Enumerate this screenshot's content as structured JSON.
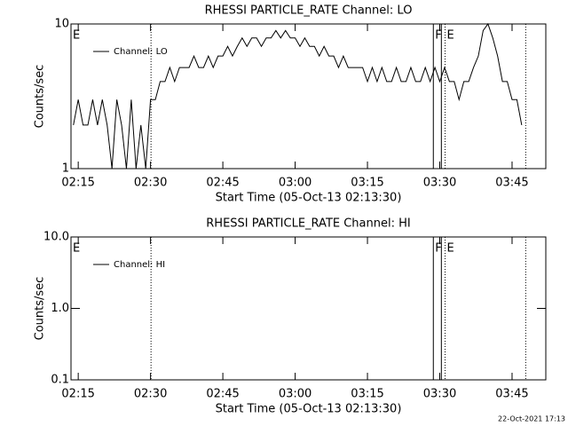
{
  "timestamp": "22-Oct-2021 17:13",
  "chart_data": [
    {
      "type": "line",
      "title": "RHESSI PARTICLE_RATE Channel: LO",
      "xlabel": "Start Time (05-Oct-13 02:13:30)",
      "ylabel": "Counts/sec",
      "log_y": true,
      "legend": "upper left",
      "step": false,
      "xlim": [
        "02:13:30",
        "03:52:00"
      ],
      "xticks": [
        "02:15",
        "02:30",
        "02:45",
        "03:00",
        "03:15",
        "03:30",
        "03:45"
      ],
      "ylim": [
        1,
        10
      ],
      "yticks": [
        1,
        10
      ],
      "x": [
        "02:14",
        "02:15",
        "02:16",
        "02:17",
        "02:18",
        "02:19",
        "02:20",
        "02:21",
        "02:22",
        "02:23",
        "02:24",
        "02:25",
        "02:26",
        "02:27",
        "02:28",
        "02:29",
        "02:30",
        "02:31",
        "02:32",
        "02:33",
        "02:34",
        "02:35",
        "02:36",
        "02:37",
        "02:38",
        "02:39",
        "02:40",
        "02:41",
        "02:42",
        "02:43",
        "02:44",
        "02:45",
        "02:46",
        "02:47",
        "02:48",
        "02:49",
        "02:50",
        "02:51",
        "02:52",
        "02:53",
        "02:54",
        "02:55",
        "02:56",
        "02:57",
        "02:58",
        "02:59",
        "03:00",
        "03:01",
        "03:02",
        "03:03",
        "03:04",
        "03:05",
        "03:06",
        "03:07",
        "03:08",
        "03:09",
        "03:10",
        "03:11",
        "03:12",
        "03:13",
        "03:14",
        "03:15",
        "03:16",
        "03:17",
        "03:18",
        "03:19",
        "03:20",
        "03:21",
        "03:22",
        "03:23",
        "03:24",
        "03:25",
        "03:26",
        "03:27",
        "03:28",
        "03:29",
        "03:30",
        "03:31",
        "03:32",
        "03:33",
        "03:34",
        "03:35",
        "03:36",
        "03:37",
        "03:38",
        "03:39",
        "03:40",
        "03:41",
        "03:42",
        "03:43",
        "03:44",
        "03:45",
        "03:46",
        "03:47"
      ],
      "series": [
        {
          "name": "Channel: LO",
          "color": "#000000",
          "values": [
            2,
            3,
            2,
            2,
            3,
            2,
            3,
            2,
            1,
            3,
            2,
            1,
            3,
            1,
            2,
            1,
            3,
            3,
            4,
            4,
            5,
            4,
            5,
            5,
            5,
            6,
            5,
            5,
            6,
            5,
            6,
            6,
            7,
            6,
            7,
            8,
            7,
            8,
            8,
            7,
            8,
            8,
            9,
            8,
            9,
            8,
            8,
            7,
            8,
            7,
            7,
            6,
            7,
            6,
            6,
            5,
            6,
            5,
            5,
            5,
            5,
            4,
            5,
            4,
            5,
            4,
            4,
            5,
            4,
            4,
            5,
            4,
            4,
            5,
            4,
            5,
            4,
            5,
            4,
            4,
            3,
            4,
            4,
            5,
            6,
            9,
            10,
            8,
            6,
            4,
            4,
            3,
            3,
            2
          ]
        }
      ],
      "flags": [
        {
          "x": "02:13:30",
          "label": "E"
        },
        {
          "x": "02:30:06",
          "style": "dotted"
        },
        {
          "x": "03:28:40",
          "style": "solid",
          "label": "F"
        },
        {
          "x": "03:30:20",
          "style": "solid"
        },
        {
          "x": "03:31:06",
          "style": "dotted",
          "label": "E"
        },
        {
          "x": "03:47:50",
          "style": "dotted"
        }
      ]
    },
    {
      "type": "line",
      "title": "RHESSI PARTICLE_RATE Channel: HI",
      "xlabel": "Start Time (05-Oct-13 02:13:30)",
      "ylabel": "Counts/sec",
      "log_y": true,
      "legend": "upper left",
      "step": false,
      "xlim": [
        "02:13:30",
        "03:52:00"
      ],
      "xticks": [
        "02:15",
        "02:30",
        "02:45",
        "03:00",
        "03:15",
        "03:30",
        "03:45"
      ],
      "ylim": [
        0.1,
        10
      ],
      "yticks": [
        0.1,
        {
          "value": 1,
          "label": "1.0"
        },
        {
          "value": 10,
          "label": "10.0"
        }
      ],
      "x": [],
      "series": [
        {
          "name": "Channel: HI",
          "color": "#000000",
          "values": []
        }
      ],
      "flags": [
        {
          "x": "02:13:30",
          "label": "E"
        },
        {
          "x": "02:30:06",
          "style": "dotted"
        },
        {
          "x": "03:28:40",
          "style": "solid",
          "label": "F"
        },
        {
          "x": "03:30:20",
          "style": "solid"
        },
        {
          "x": "03:31:06",
          "style": "dotted",
          "label": "E"
        },
        {
          "x": "03:47:50",
          "style": "dotted"
        }
      ]
    }
  ]
}
